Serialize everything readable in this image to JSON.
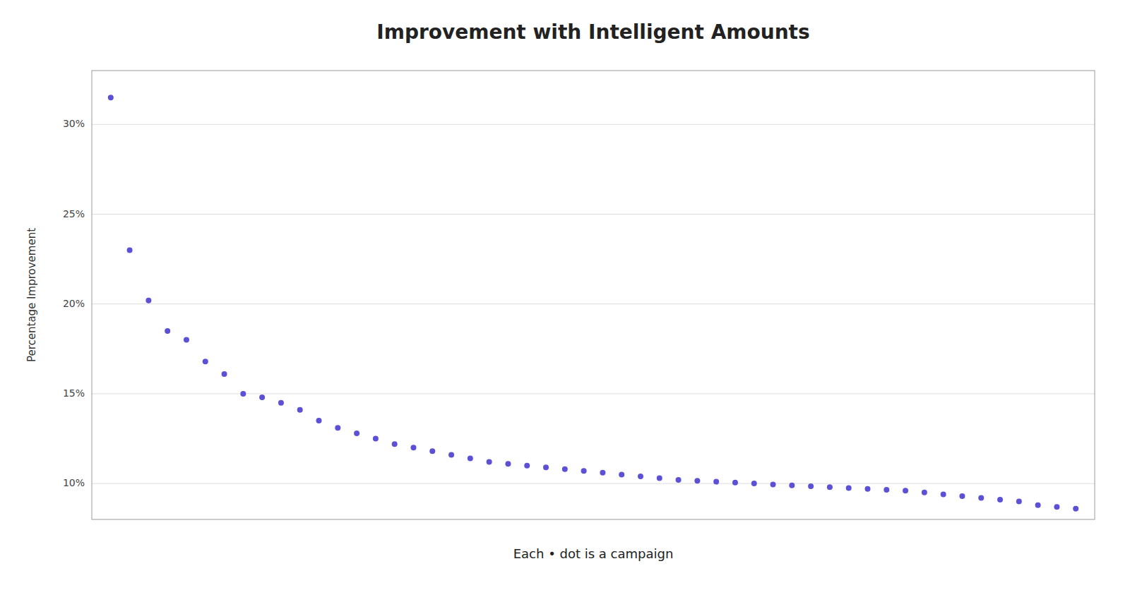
{
  "chart_data": {
    "type": "scatter",
    "title": "Improvement with Intelligent Amounts",
    "ylabel": "Percentage Improvement",
    "annotation": "Each • dot is a campaign",
    "color": "#5b50d6",
    "values": [
      31.5,
      23.0,
      20.2,
      18.5,
      18.0,
      16.8,
      16.1,
      15.0,
      14.8,
      14.5,
      14.1,
      13.5,
      13.1,
      12.8,
      12.5,
      12.2,
      12.0,
      11.8,
      11.6,
      11.4,
      11.2,
      11.1,
      11.0,
      10.9,
      10.8,
      10.7,
      10.6,
      10.5,
      10.4,
      10.3,
      10.2,
      10.15,
      10.1,
      10.05,
      10.0,
      9.95,
      9.9,
      9.85,
      9.8,
      9.75,
      9.7,
      9.65,
      9.6,
      9.5,
      9.4,
      9.3,
      9.2,
      9.1,
      9.0,
      8.8,
      8.7,
      8.6
    ],
    "ylim": [
      8.0,
      33.0
    ],
    "yticks": [
      {
        "value": 10,
        "label": "10%"
      },
      {
        "value": 15,
        "label": "15%"
      },
      {
        "value": 20,
        "label": "20%"
      },
      {
        "value": 25,
        "label": "25%"
      },
      {
        "value": 30,
        "label": "30%"
      }
    ],
    "grid": true,
    "tick_labels": "y"
  }
}
